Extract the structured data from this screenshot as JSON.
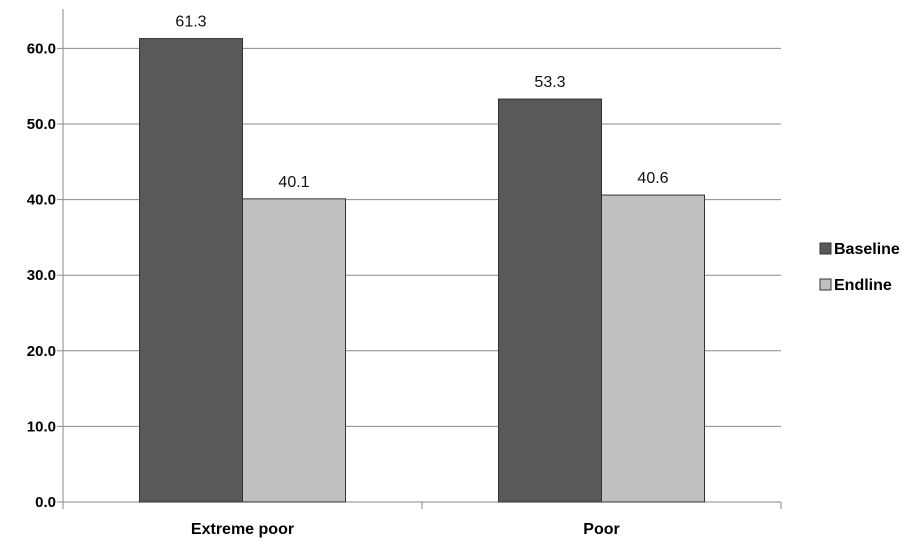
{
  "chart_data": {
    "type": "bar",
    "categories": [
      "Extreme poor",
      "Poor"
    ],
    "series": [
      {
        "name": "Baseline",
        "values": [
          61.3,
          53.3
        ],
        "color": "#595959"
      },
      {
        "name": "Endline",
        "values": [
          40.1,
          40.6
        ],
        "color": "#c0c0c0"
      }
    ],
    "data_labels": [
      [
        "61.3",
        "53.3"
      ],
      [
        "40.1",
        "40.6"
      ]
    ],
    "yticks": [
      "0.0",
      "10.0",
      "20.0",
      "30.0",
      "40.0",
      "50.0",
      "60.0"
    ],
    "ylim": [
      0,
      61.3
    ],
    "grid": true,
    "legend_position": "right",
    "title": "",
    "xlabel": "",
    "ylabel": ""
  }
}
